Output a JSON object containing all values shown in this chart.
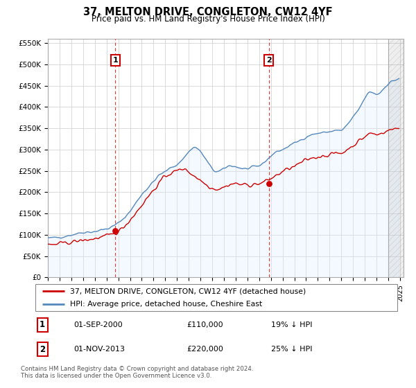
{
  "title": "37, MELTON DRIVE, CONGLETON, CW12 4YF",
  "subtitle": "Price paid vs. HM Land Registry's House Price Index (HPI)",
  "legend_entry1": "37, MELTON DRIVE, CONGLETON, CW12 4YF (detached house)",
  "legend_entry2": "HPI: Average price, detached house, Cheshire East",
  "annotation1_label": "1",
  "annotation1_date": "01-SEP-2000",
  "annotation1_price": "£110,000",
  "annotation1_hpi": "19% ↓ HPI",
  "annotation2_label": "2",
  "annotation2_date": "01-NOV-2013",
  "annotation2_price": "£220,000",
  "annotation2_hpi": "25% ↓ HPI",
  "footer": "Contains HM Land Registry data © Crown copyright and database right 2024.\nThis data is licensed under the Open Government Licence v3.0.",
  "ylim": [
    0,
    560000
  ],
  "yticks": [
    0,
    50000,
    100000,
    150000,
    200000,
    250000,
    300000,
    350000,
    400000,
    450000,
    500000,
    550000
  ],
  "price_color": "#cc0000",
  "hpi_color": "#5588bb",
  "hpi_fill_color": "#ddeeff",
  "vline_color": "#ee3333",
  "annotation_box_color": "#cc0000",
  "background_color": "#ffffff",
  "grid_color": "#cccccc",
  "hatch_color": "#bbbbbb",
  "sale1_x": 2000.75,
  "sale1_y": 110000,
  "sale2_x": 2013.83,
  "sale2_y": 220000,
  "xmin": 1995,
  "xmax": 2025.3,
  "hatch_start": 2024.0
}
